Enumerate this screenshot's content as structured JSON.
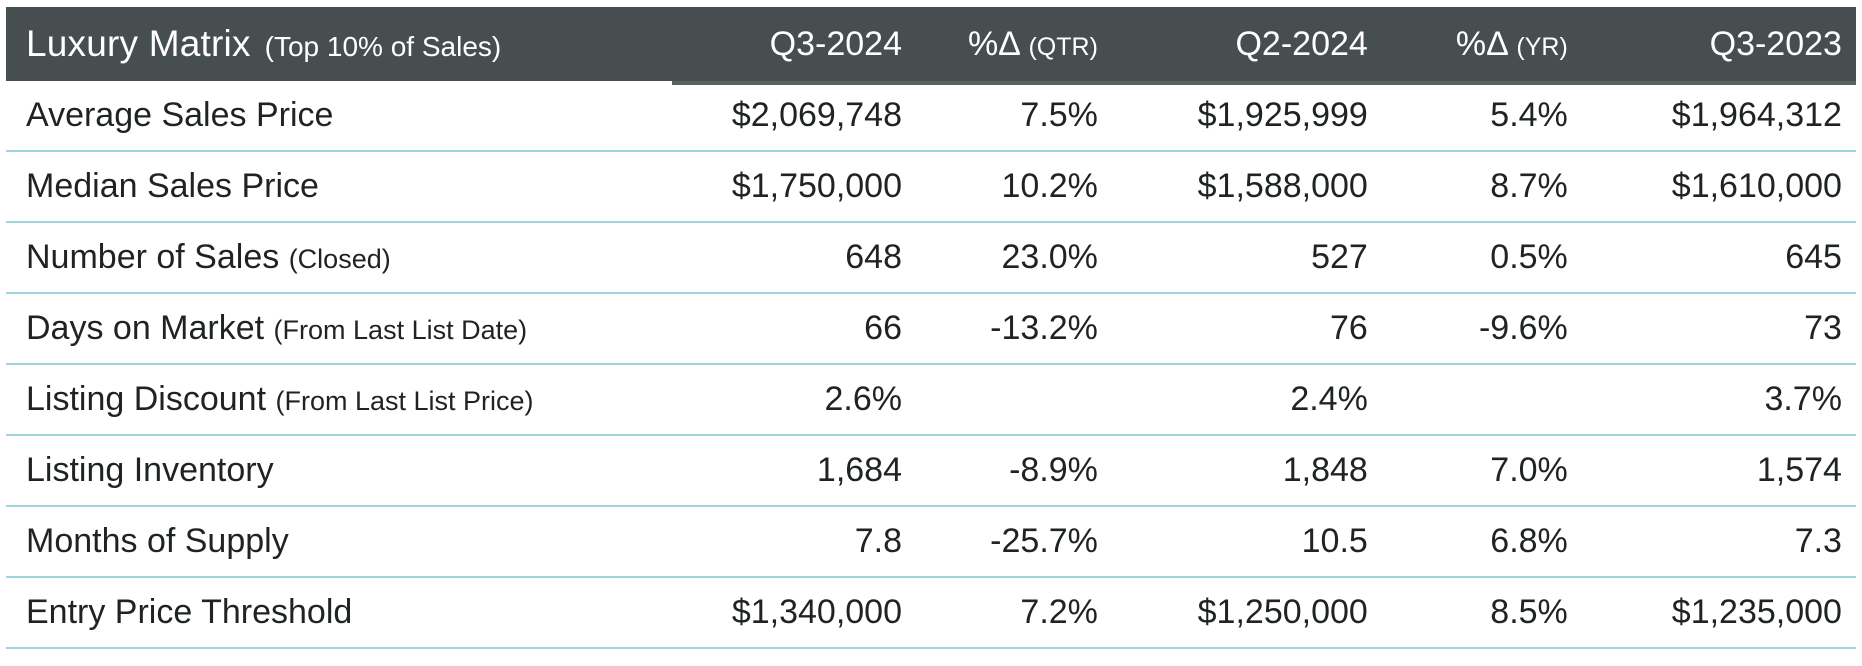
{
  "colors": {
    "header_bg": "#474e50",
    "divider": "#9fd5de",
    "text": "#1f2324",
    "background": "#ffffff",
    "header_text": "#ffffff"
  },
  "chart_data": {
    "type": "table",
    "title": "Luxury Matrix",
    "subtitle": "(Top 10% of Sales)",
    "columns": [
      {
        "label": "Q3-2024",
        "paren": ""
      },
      {
        "label": "%Δ",
        "paren": "(QTR)"
      },
      {
        "label": "Q2-2024",
        "paren": ""
      },
      {
        "label": "%Δ",
        "paren": "(YR)"
      },
      {
        "label": "Q3-2023",
        "paren": ""
      }
    ],
    "rows": [
      {
        "label": "Average Sales Price",
        "note": "",
        "values": [
          "$2,069,748",
          "7.5%",
          "$1,925,999",
          "5.4%",
          "$1,964,312"
        ]
      },
      {
        "label": "Median Sales Price",
        "note": "",
        "values": [
          "$1,750,000",
          "10.2%",
          "$1,588,000",
          "8.7%",
          "$1,610,000"
        ]
      },
      {
        "label": "Number of Sales",
        "note": "(Closed)",
        "values": [
          "648",
          "23.0%",
          "527",
          "0.5%",
          "645"
        ]
      },
      {
        "label": "Days on Market",
        "note": "(From Last List Date)",
        "values": [
          "66",
          "-13.2%",
          "76",
          "-9.6%",
          "73"
        ]
      },
      {
        "label": "Listing Discount",
        "note": "(From Last List Price)",
        "values": [
          "2.6%",
          "",
          "2.4%",
          "",
          "3.7%"
        ]
      },
      {
        "label": "Listing Inventory",
        "note": "",
        "values": [
          "1,684",
          "-8.9%",
          "1,848",
          "7.0%",
          "1,574"
        ]
      },
      {
        "label": "Months of Supply",
        "note": "",
        "values": [
          "7.8",
          "-25.7%",
          "10.5",
          "6.8%",
          "7.3"
        ]
      },
      {
        "label": "Entry Price Threshold",
        "note": "",
        "values": [
          "$1,340,000",
          "7.2%",
          "$1,250,000",
          "8.5%",
          "$1,235,000"
        ]
      }
    ]
  }
}
